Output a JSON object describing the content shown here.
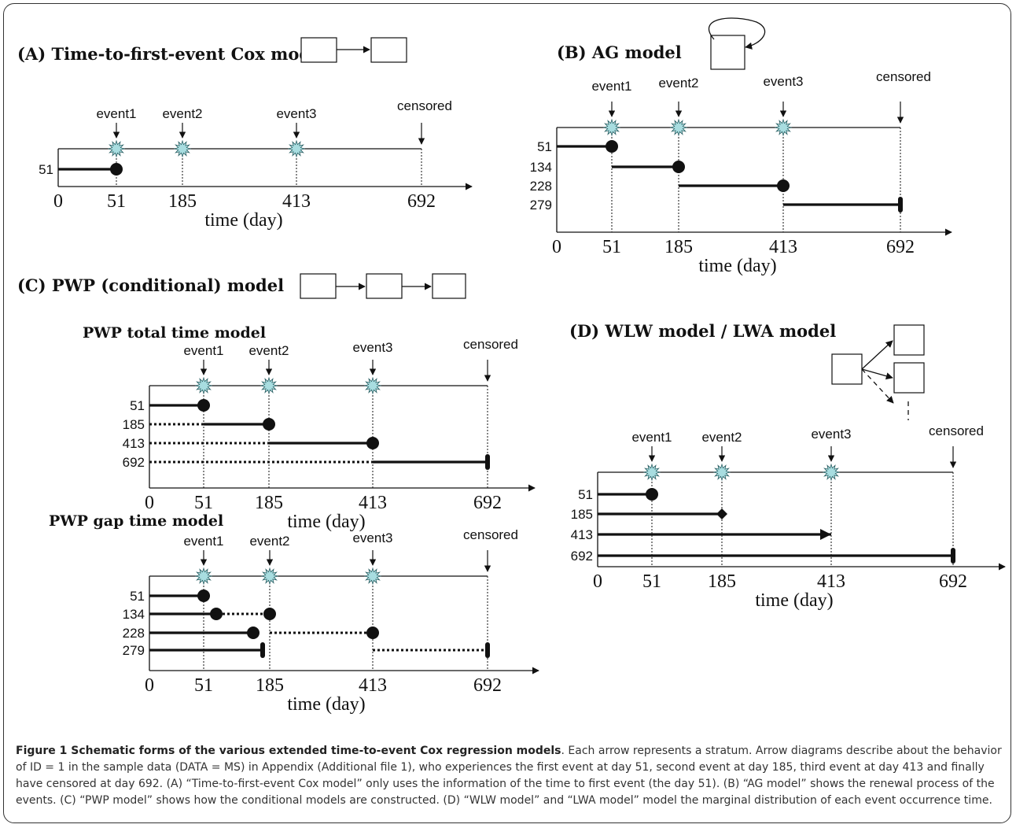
{
  "panels": {
    "a": {
      "title": "(A) Time-to-first-event Cox model"
    },
    "b": {
      "title": "(B) AG model"
    },
    "c": {
      "title": "(C) PWP (conditional) model",
      "total_title": "PWP total time model",
      "gap_title": "PWP gap time model"
    },
    "d": {
      "title": "(D) WLW model / LWA model"
    }
  },
  "axis": {
    "label": "time (day)",
    "ticks": [
      "0",
      "51",
      "185",
      "413",
      "692"
    ]
  },
  "events": [
    "event1",
    "event2",
    "event3",
    "censored"
  ],
  "rows": {
    "a": [
      "51"
    ],
    "b": [
      "51",
      "134",
      "228",
      "279"
    ],
    "c_total": [
      "51",
      "185",
      "413",
      "692"
    ],
    "c_gap": [
      "51",
      "134",
      "228",
      "279"
    ],
    "d": [
      "51",
      "185",
      "413",
      "692"
    ]
  },
  "colors": {
    "star_fill": "#a8dde0",
    "line": "#111111"
  },
  "caption": {
    "title": "Figure 1 Schematic forms of the various extended time-to-event Cox regression models",
    "body": ". Each arrow represents a stratum. Arrow diagrams describe about the behavior of ID = 1 in the sample data (DATA = MS) in Appendix (Additional file 1), who experiences the first event at day 51, second event at day 185, third event at day 413 and finally have censored at day 692. (A) “Time-to-first-event Cox model” only uses the information of the time to first event (the day 51). (B) “AG model” shows the renewal process of the events. (C) “PWP model” shows how the conditional models are constructed. (D) “WLW model” and “LWA model” model the marginal distribution of each event occurrence time."
  }
}
